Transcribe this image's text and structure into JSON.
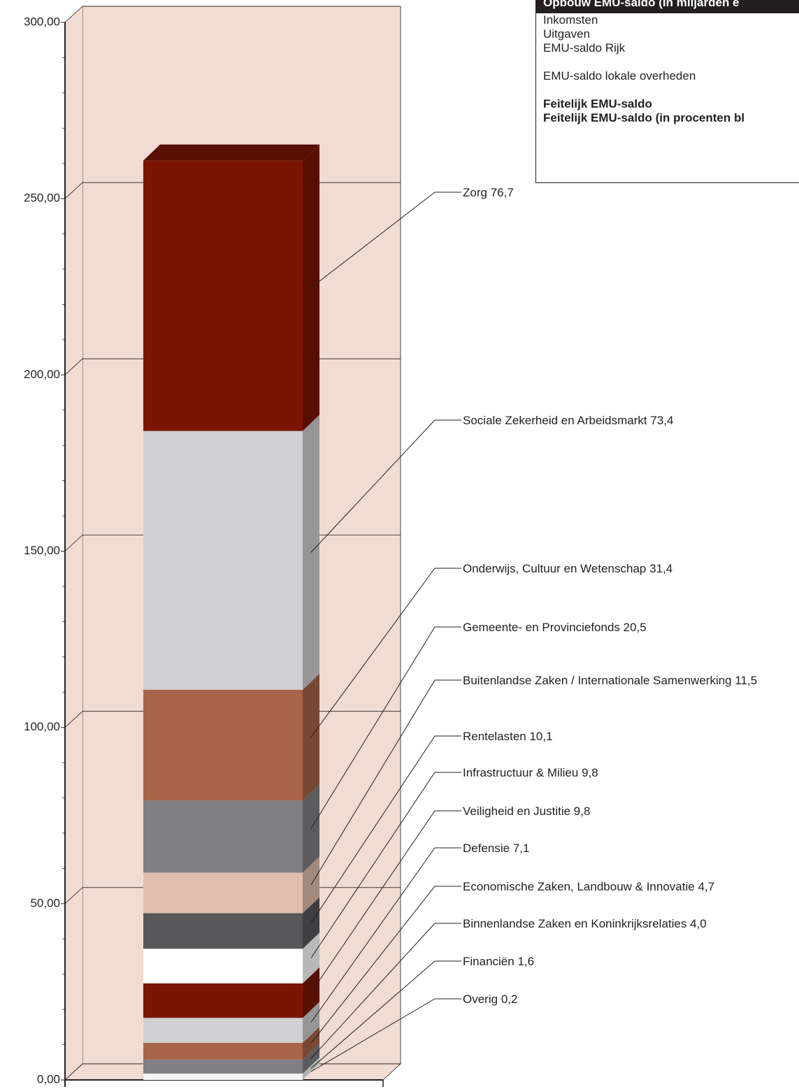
{
  "chart_data": {
    "type": "stacked_bar",
    "series": [
      {
        "name": "Overig",
        "color": "#ffffff",
        "values": [
          0.2
        ],
        "value_labels": [
          "0,2"
        ]
      },
      {
        "name": "Financiën",
        "color": "#f4f4f4",
        "values": [
          1.6
        ],
        "value_labels": [
          "1,6"
        ]
      },
      {
        "name": "Binnenlandse Zaken en Koninkrijksrelaties",
        "color": "#808083",
        "values": [
          4.0
        ],
        "value_labels": [
          "4,0"
        ]
      },
      {
        "name": "Economische Zaken, Landbouw & Innovatie",
        "color": "#a86448",
        "values": [
          4.7
        ],
        "value_labels": [
          "4,7"
        ]
      },
      {
        "name": "Defensie",
        "color": "#d0d0d2",
        "values": [
          7.1
        ],
        "value_labels": [
          "7,1"
        ]
      },
      {
        "name": "Veiligheid en Justitie",
        "color": "#7c1500",
        "values": [
          9.8
        ],
        "value_labels": [
          "9,8"
        ]
      },
      {
        "name": "Infrastructuur & Milieu",
        "color": "#ffffff",
        "values": [
          9.8
        ],
        "value_labels": [
          "9,8"
        ]
      },
      {
        "name": "Rentelasten",
        "color": "#58585a",
        "values": [
          10.1
        ],
        "value_labels": [
          "10,1"
        ]
      },
      {
        "name": "Buitenlandse Zaken / Internationale Samenwerking",
        "color": "#dfbfae",
        "values": [
          11.5
        ],
        "value_labels": [
          "11,5"
        ]
      },
      {
        "name": "Gemeente- en Provinciefonds",
        "color": "#808083",
        "values": [
          20.5
        ],
        "value_labels": [
          "20,5"
        ]
      },
      {
        "name": "Onderwijs, Cultuur en Wetenschap",
        "color": "#a86448",
        "values": [
          31.4
        ],
        "value_labels": [
          "31,4"
        ]
      },
      {
        "name": "Sociale Zekerheid en Arbeidsmarkt",
        "color": "#d0d0d2",
        "values": [
          73.4
        ],
        "value_labels": [
          "73,4"
        ]
      },
      {
        "name": "Zorg",
        "color": "#7c1500",
        "values": [
          76.7
        ],
        "value_labels": [
          "76,7"
        ]
      }
    ],
    "ylim": [
      0,
      300
    ],
    "yticks": [
      {
        "value": 0,
        "label": "0,00"
      },
      {
        "value": 50,
        "label": "50,00"
      },
      {
        "value": 100,
        "label": "100,00"
      },
      {
        "value": 150,
        "label": "150,00"
      },
      {
        "value": 200,
        "label": "200,00"
      },
      {
        "value": 250,
        "label": "250,00"
      },
      {
        "value": 300,
        "label": "300,00"
      }
    ],
    "grid": true,
    "wall_color": "#efdcd2"
  },
  "panel": {
    "title": "Opbouw EMU-saldo (in miljarden e",
    "groups": [
      [
        "Inkomsten",
        "Uitgaven",
        "EMU-saldo Rijk"
      ],
      [
        "EMU-saldo lokale overheden"
      ],
      [
        "Feitelijk EMU-saldo",
        "Feitelijk EMU-saldo (in procenten bl"
      ]
    ]
  }
}
